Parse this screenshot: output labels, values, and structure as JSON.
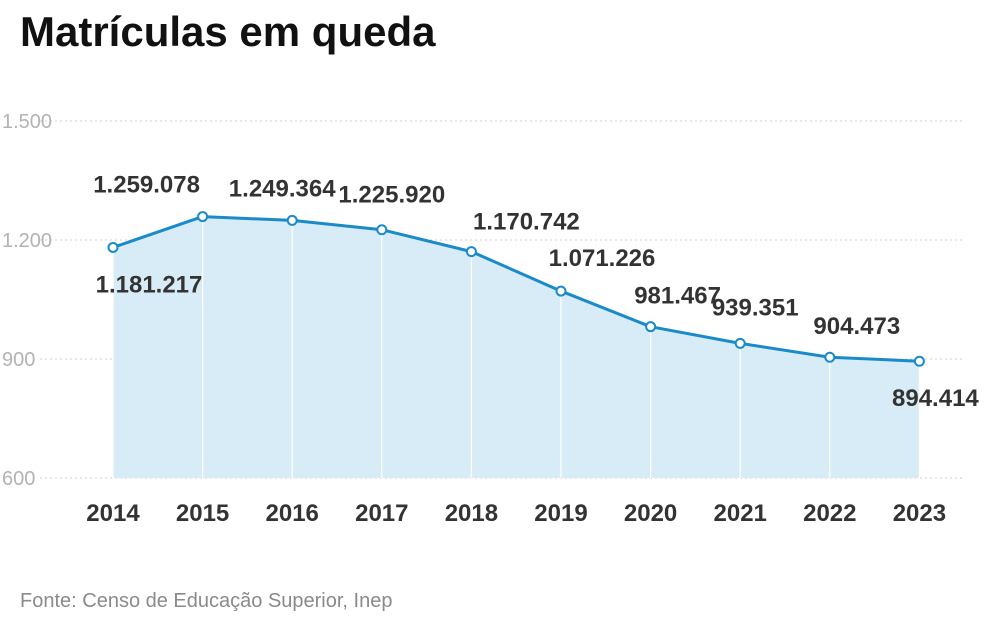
{
  "title": "Matrículas em queda",
  "source": "Fonte: Censo de Educação Superior, Inep",
  "colors": {
    "line": "#1a8ac9",
    "area": "#d8ecf8",
    "grid": "#cfcfcf",
    "point_fill": "#ffffff"
  },
  "chart_data": {
    "type": "area",
    "title": "Matrículas em queda",
    "xlabel": "",
    "ylabel": "",
    "categories": [
      "2014",
      "2015",
      "2016",
      "2017",
      "2018",
      "2019",
      "2020",
      "2021",
      "2022",
      "2023"
    ],
    "series": [
      {
        "values": [
          1181.217,
          1259.078,
          1249.364,
          1225.92,
          1170.742,
          1071.226,
          981.467,
          939.351,
          904.473,
          894.414
        ],
        "labels": [
          "1.181.217",
          "1.259.078",
          "1.249.364",
          "1.225.920",
          "1.170.742",
          "1.071.226",
          "981.467",
          "939.351",
          "904.473",
          "894.414"
        ]
      }
    ],
    "yticks": [
      600,
      900,
      1200,
      1500
    ],
    "ytick_labels": [
      "600",
      "900",
      "1.200",
      "1.500"
    ],
    "ylim": [
      600,
      1500
    ],
    "grid": true,
    "legend": "none"
  }
}
